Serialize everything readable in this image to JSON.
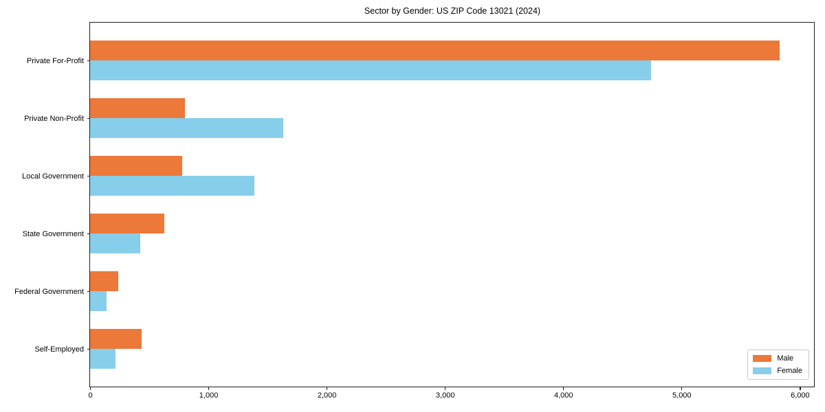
{
  "chart_data": {
    "type": "bar",
    "orientation": "horizontal",
    "title": "Sector by Gender: US ZIP Code 13021 (2024)",
    "categories": [
      "Private For-Profit",
      "Private Non-Profit",
      "Local Government",
      "State Government",
      "Federal Government",
      "Self-Employed"
    ],
    "series": [
      {
        "name": "Male",
        "color": "#EC7839",
        "values": [
          5830,
          800,
          780,
          630,
          240,
          435
        ]
      },
      {
        "name": "Female",
        "color": "#87CEEB",
        "values": [
          4745,
          1630,
          1390,
          425,
          140,
          215
        ]
      }
    ],
    "xlabel": "",
    "ylabel": "",
    "xlim": [
      0,
      6120
    ],
    "x_ticks": [
      0,
      1000,
      2000,
      3000,
      4000,
      5000,
      6000
    ],
    "x_tick_labels": [
      "0",
      "1,000",
      "2,000",
      "3,000",
      "4,000",
      "5,000",
      "6,000"
    ],
    "grid": false,
    "legend": {
      "position": "lower right"
    }
  },
  "colors": {
    "male": "#EC7839",
    "female": "#87CEEB",
    "axis": "#1a1a1a",
    "legend_border": "#c9c9c9",
    "background": "#ffffff"
  }
}
